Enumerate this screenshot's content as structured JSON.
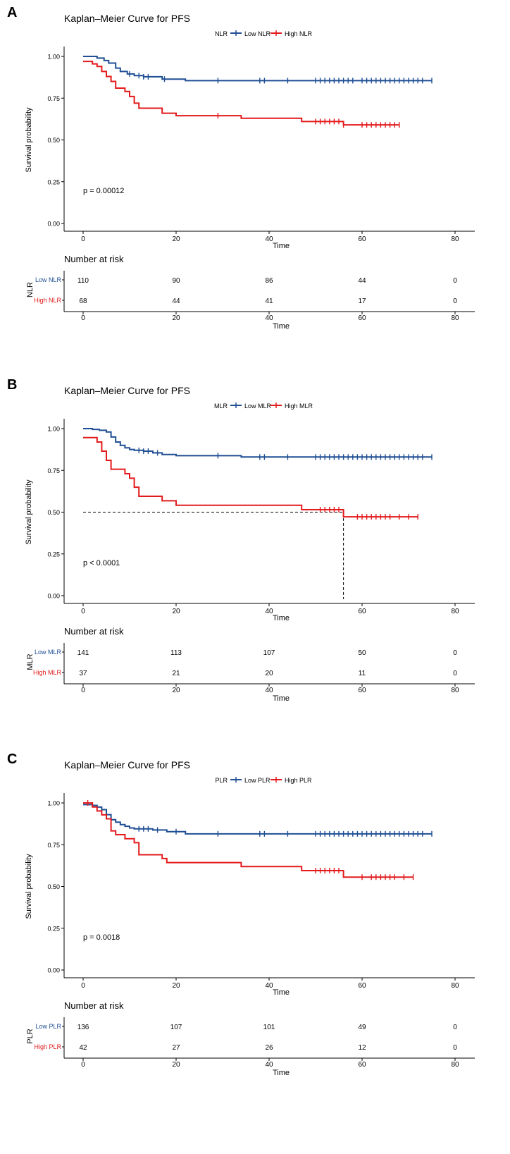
{
  "figure": {
    "axis_label_x": "Time",
    "axis_label_y": "Survival probability",
    "risk_table_title": "Number at risk"
  },
  "colors": {
    "low": "#1F4E94",
    "high": "#E31A1C",
    "axis": "#000000"
  },
  "chart_data": [
    {
      "panel_label": "A",
      "type": "line",
      "title": "Kaplan–Meier Curve for PFS",
      "legend_title": "NLR",
      "xlabel": "Time",
      "ylabel": "Survival probability",
      "xlim": [
        -4,
        80
      ],
      "ylim": [
        0,
        1
      ],
      "x_ticks": [
        "0",
        "20",
        "40",
        "60",
        "80"
      ],
      "y_ticks": [
        "0.00",
        "0.25",
        "0.50",
        "0.75",
        "1.00"
      ],
      "p_value": "p = 0.00012",
      "median_line": null,
      "series": [
        {
          "name": "Low NLR",
          "group": "low",
          "x": [
            0,
            3,
            4.5,
            5.5,
            7,
            8,
            9.5,
            11,
            13,
            17,
            22,
            75
          ],
          "y": [
            1.0,
            0.99,
            0.975,
            0.96,
            0.93,
            0.91,
            0.895,
            0.885,
            0.878,
            0.864,
            0.855,
            0.855
          ],
          "censor_times": [
            10,
            12,
            13,
            14,
            17.5,
            29,
            38,
            39,
            44,
            50,
            51,
            52,
            53,
            54,
            55,
            56,
            57,
            58,
            60,
            61,
            62,
            63,
            64,
            65,
            66,
            67,
            68,
            69,
            70,
            71,
            72,
            73,
            75
          ]
        },
        {
          "name": "High NLR",
          "group": "high",
          "x": [
            0,
            2,
            3,
            4,
            5,
            6,
            7,
            9,
            10,
            11,
            12,
            17,
            20,
            34,
            47,
            56,
            68
          ],
          "y": [
            0.97,
            0.955,
            0.94,
            0.91,
            0.88,
            0.85,
            0.81,
            0.79,
            0.76,
            0.72,
            0.69,
            0.66,
            0.645,
            0.63,
            0.61,
            0.59,
            0.59
          ],
          "censor_times": [
            29,
            50,
            51,
            52,
            53,
            54,
            55,
            56,
            60,
            61,
            62,
            63,
            64,
            65,
            66,
            67,
            68
          ]
        }
      ],
      "risk_table": {
        "row_labels": [
          "Low NLR",
          "High NLR"
        ],
        "stratum_label": "NLR",
        "times": [
          0,
          20,
          40,
          60,
          80
        ],
        "rows": [
          [
            "110",
            "90",
            "86",
            "44",
            "0"
          ],
          [
            "68",
            "44",
            "41",
            "17",
            "0"
          ]
        ]
      }
    },
    {
      "panel_label": "B",
      "type": "line",
      "title": "Kaplan–Meier Curve for PFS",
      "legend_title": "MLR",
      "xlabel": "Time",
      "ylabel": "Survival probability",
      "xlim": [
        -4,
        80
      ],
      "ylim": [
        0,
        1
      ],
      "x_ticks": [
        "0",
        "20",
        "40",
        "60",
        "80"
      ],
      "y_ticks": [
        "0.00",
        "0.25",
        "0.50",
        "0.75",
        "1.00"
      ],
      "p_value": "p < 0.0001",
      "median_line": {
        "y": 0.5,
        "x": 56
      },
      "series": [
        {
          "name": "Low MLR",
          "group": "low",
          "x": [
            0,
            2,
            3.5,
            5,
            6,
            7,
            8,
            9,
            10,
            11,
            13,
            15,
            17,
            20,
            34,
            75
          ],
          "y": [
            1.0,
            0.995,
            0.99,
            0.98,
            0.95,
            0.92,
            0.9,
            0.885,
            0.875,
            0.87,
            0.865,
            0.855,
            0.845,
            0.838,
            0.83,
            0.83
          ],
          "censor_times": [
            12,
            13,
            14,
            16,
            29,
            38,
            39,
            44,
            50,
            51,
            52,
            53,
            54,
            55,
            56,
            57,
            58,
            59,
            60,
            61,
            62,
            63,
            64,
            65,
            66,
            67,
            68,
            69,
            70,
            71,
            72,
            73,
            75
          ]
        },
        {
          "name": "High MLR",
          "group": "high",
          "x": [
            0,
            3,
            4,
            5,
            6,
            9,
            10,
            11,
            12,
            17,
            20,
            47,
            56,
            72
          ],
          "y": [
            0.946,
            0.92,
            0.865,
            0.81,
            0.757,
            0.73,
            0.703,
            0.649,
            0.595,
            0.568,
            0.541,
            0.515,
            0.472,
            0.472
          ],
          "censor_times": [
            51,
            52,
            53,
            54,
            55,
            59,
            60,
            61,
            62,
            63,
            64,
            65,
            66,
            68,
            70,
            72
          ]
        }
      ],
      "risk_table": {
        "row_labels": [
          "Low MLR",
          "High MLR"
        ],
        "stratum_label": "MLR",
        "times": [
          0,
          20,
          40,
          60,
          80
        ],
        "rows": [
          [
            "141",
            "113",
            "107",
            "50",
            "0"
          ],
          [
            "37",
            "21",
            "20",
            "11",
            "0"
          ]
        ]
      }
    },
    {
      "panel_label": "C",
      "type": "line",
      "title": "Kaplan–Meier Curve for PFS",
      "legend_title": "PLR",
      "xlabel": "Time",
      "ylabel": "Survival probability",
      "xlim": [
        -4,
        80
      ],
      "ylim": [
        0,
        1
      ],
      "x_ticks": [
        "0",
        "20",
        "40",
        "60",
        "80"
      ],
      "y_ticks": [
        "0.00",
        "0.25",
        "0.50",
        "0.75",
        "1.00"
      ],
      "p_value": "p = 0.0018",
      "median_line": null,
      "series": [
        {
          "name": "Low PLR",
          "group": "low",
          "x": [
            0,
            2,
            3,
            4,
            5,
            6,
            7,
            8,
            9,
            10,
            11,
            15,
            18,
            22,
            75
          ],
          "y": [
            0.99,
            0.985,
            0.975,
            0.96,
            0.93,
            0.9,
            0.885,
            0.87,
            0.86,
            0.85,
            0.845,
            0.838,
            0.828,
            0.815,
            0.815
          ],
          "censor_times": [
            12,
            13,
            14,
            16,
            20,
            29,
            38,
            39,
            44,
            50,
            51,
            52,
            53,
            54,
            55,
            56,
            57,
            58,
            59,
            60,
            61,
            62,
            63,
            64,
            65,
            66,
            67,
            68,
            69,
            70,
            71,
            72,
            73,
            75
          ]
        },
        {
          "name": "High PLR",
          "group": "high",
          "x": [
            0,
            2,
            3,
            4,
            5,
            6,
            7,
            9,
            11,
            12,
            17,
            18,
            34,
            47,
            56,
            71
          ],
          "y": [
            1.0,
            0.976,
            0.952,
            0.929,
            0.905,
            0.833,
            0.81,
            0.786,
            0.762,
            0.69,
            0.667,
            0.643,
            0.619,
            0.595,
            0.556,
            0.556
          ],
          "censor_times": [
            1,
            50,
            51,
            52,
            53,
            54,
            55,
            60,
            62,
            63,
            64,
            65,
            66,
            67,
            69,
            71
          ]
        }
      ],
      "risk_table": {
        "row_labels": [
          "Low PLR",
          "High PLR"
        ],
        "stratum_label": "PLR",
        "times": [
          0,
          20,
          40,
          60,
          80
        ],
        "rows": [
          [
            "136",
            "107",
            "101",
            "49",
            "0"
          ],
          [
            "42",
            "27",
            "26",
            "12",
            "0"
          ]
        ]
      }
    }
  ]
}
